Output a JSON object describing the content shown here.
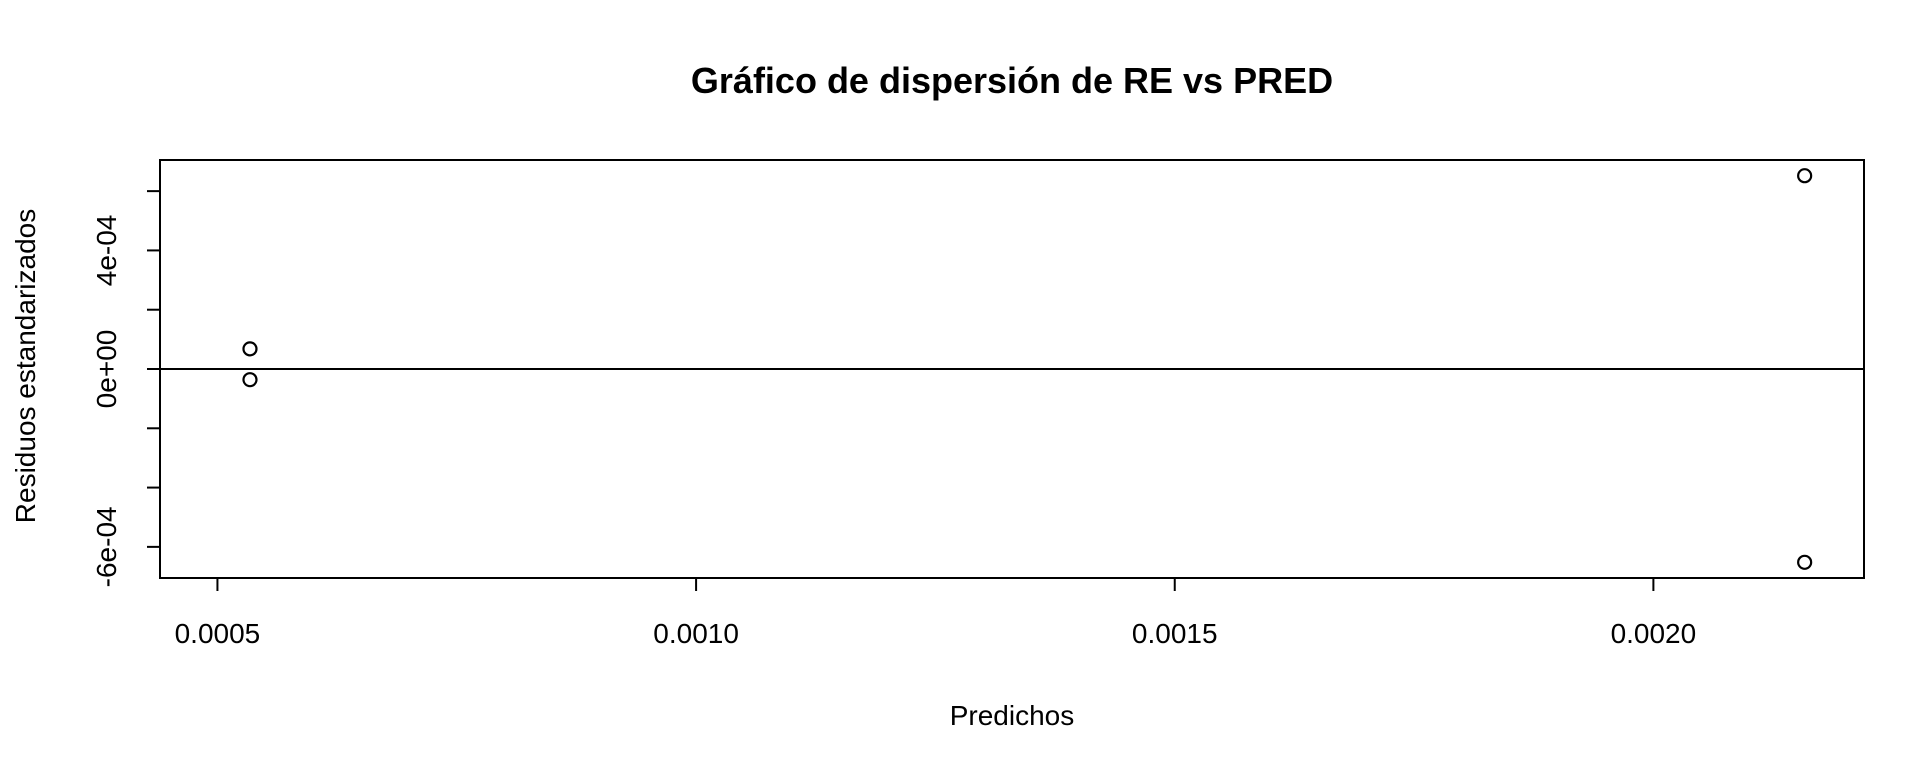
{
  "chart_data": {
    "type": "scatter",
    "title": "Gráfico de dispersión de RE vs PRED",
    "xlabel": "Predichos",
    "ylabel": "Residuos estandarizados",
    "xlim": [
      0.00044,
      0.00222
    ],
    "ylim": [
      -0.000705,
      0.000705
    ],
    "x_ticks": [
      0.0005,
      0.001,
      0.0015,
      0.002
    ],
    "x_tick_labels": [
      "0.0005",
      "0.0010",
      "0.0015",
      "0.0020"
    ],
    "y_ticks": [
      -0.0006,
      -0.0004,
      -0.0002,
      0,
      0.0002,
      0.0004,
      0.0006
    ],
    "y_tick_labels": [
      "-6e-04",
      "",
      "",
      "0e+00",
      "",
      "4e-04",
      ""
    ],
    "reference_line_y": 0,
    "grid": false,
    "marker": "open-circle",
    "points": [
      {
        "x": 0.000534,
        "y": 6.8e-05
      },
      {
        "x": 0.000534,
        "y": -3.6e-05
      },
      {
        "x": 0.002158,
        "y": 0.000652
      },
      {
        "x": 0.002158,
        "y": -0.000652
      }
    ]
  }
}
